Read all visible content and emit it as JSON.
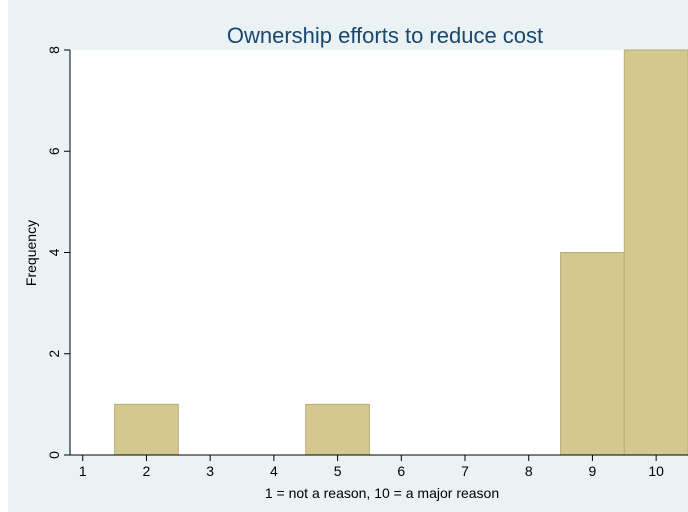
{
  "chart_data": {
    "type": "bar",
    "title": "Ownership efforts to reduce cost",
    "xlabel": "1 = not a reason, 10 = a major reason",
    "ylabel": "Frequency",
    "x_ticks": [
      1,
      2,
      3,
      4,
      5,
      6,
      7,
      8,
      9,
      10
    ],
    "y_ticks": [
      0,
      2,
      4,
      6,
      8
    ],
    "xlim": [
      0.8,
      10.5
    ],
    "ylim": [
      0,
      8
    ],
    "categories": [
      2,
      5,
      9,
      10
    ],
    "values": [
      1,
      1,
      4,
      8
    ],
    "grid": false,
    "colors": {
      "bar_fill": "#d4c88e",
      "bar_edge": "#b8ad78",
      "plot_bg": "#ffffff",
      "outer_bg": "#eaf2f3",
      "title": "#1a476f"
    }
  }
}
